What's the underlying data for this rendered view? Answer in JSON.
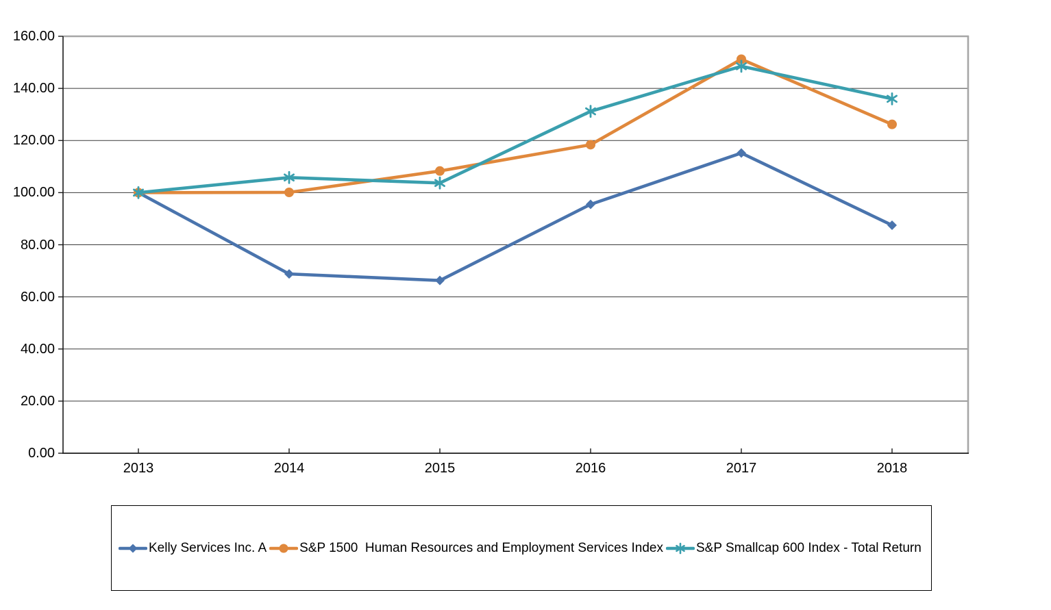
{
  "chart_data": {
    "type": "line",
    "title": "",
    "xlabel": "",
    "ylabel": "",
    "categories": [
      "2013",
      "2014",
      "2015",
      "2016",
      "2017",
      "2018"
    ],
    "series": [
      {
        "name": "Kelly Services Inc. A",
        "marker": "diamond",
        "color": "#4a74ad",
        "values": [
          100.0,
          68.8,
          66.3,
          95.5,
          115.2,
          87.5
        ]
      },
      {
        "name": "S&P 1500  Human Resources and Employment Services Index",
        "marker": "circle",
        "color": "#e0883c",
        "values": [
          100.0,
          100.1,
          108.3,
          118.4,
          151.2,
          126.2
        ]
      },
      {
        "name": "S&P Smallcap 600 Index - Total Return",
        "marker": "asterisk",
        "color": "#3a9fae",
        "values": [
          100.0,
          105.8,
          103.7,
          131.2,
          148.5,
          136.0
        ]
      }
    ],
    "ylim": [
      0,
      160
    ],
    "ytick_step": 20,
    "y_tick_values": [
      0,
      20,
      40,
      60,
      80,
      100,
      120,
      140,
      160
    ],
    "y_tick_labels": [
      "0.00",
      "20.00",
      "40.00",
      "60.00",
      "80.00",
      "100.00",
      "120.00",
      "140.00",
      "160.00"
    ],
    "x_tick_labels": [
      "2013",
      "2014",
      "2015",
      "2016",
      "2017",
      "2018"
    ],
    "grid": "horizontal",
    "legend_position": "bottom",
    "plot_border_colors": {
      "axis": "#1a1a1a",
      "gridline": "#3a3a3a",
      "top_right_border": "#a6a6a6"
    }
  }
}
